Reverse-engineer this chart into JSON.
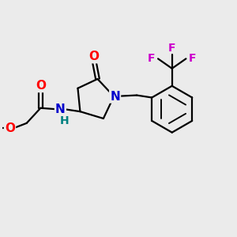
{
  "background_color": "#ebebeb",
  "bond_color": "#000000",
  "bond_width": 1.6,
  "atom_colors": {
    "O": "#ff0000",
    "N": "#0000cc",
    "F": "#cc00cc",
    "C": "#000000",
    "H": "#008080"
  },
  "font_size_atoms": 11,
  "font_size_small": 9,
  "font_size_F": 10
}
